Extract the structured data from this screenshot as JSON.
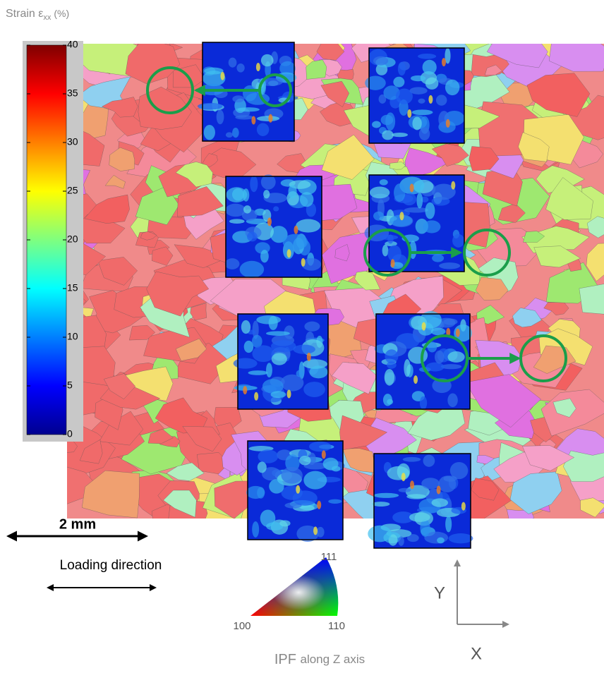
{
  "strain_label": {
    "symbol": "Strain ε",
    "subscript": "xx",
    "unit": "(%)"
  },
  "colorbar": {
    "lim": [
      0,
      40
    ],
    "ticks": [
      0,
      5,
      10,
      15,
      20,
      25,
      30,
      35,
      40
    ]
  },
  "scale_bar": "2 mm",
  "loading_direction": "Loading direction",
  "ipf": {
    "top": "111",
    "left": "100",
    "right": "110",
    "title_abbr": "IPF",
    "title_rest": "along Z axis"
  },
  "axes": {
    "y": "Y",
    "x": "X"
  }
}
